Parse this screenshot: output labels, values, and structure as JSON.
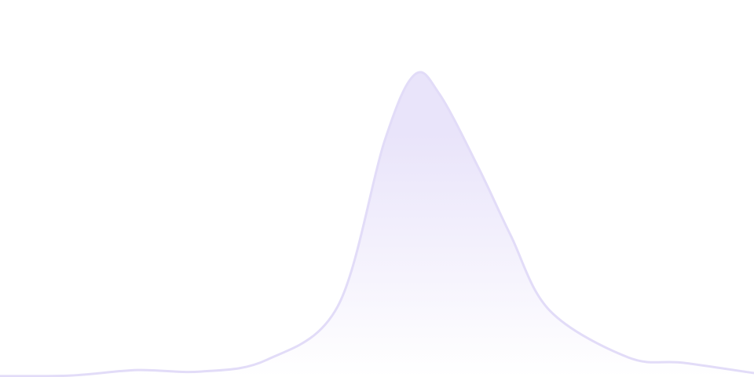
{
  "chart_data": {
    "type": "area",
    "title": "",
    "xlabel": "",
    "ylabel": "",
    "grid": false,
    "axes_visible": false,
    "legend": "none",
    "smooth": true,
    "xlim": [
      0,
      100
    ],
    "ylim": [
      0,
      100
    ],
    "colors": {
      "stroke": "#e2dcf8",
      "fill_top": "#e9e4fa",
      "fill_bottom": "#ffffff"
    },
    "series": [
      {
        "x": [
          0,
          9.4,
          18.2,
          26.6,
          35.4,
          44.8,
          51,
          55,
          58.3,
          63.5,
          67.7,
          72.9,
          83.3,
          90.6,
          100
        ],
        "values": [
          0.3,
          0.5,
          2.3,
          1.8,
          5.7,
          23.4,
          78,
          100,
          93.5,
          69,
          47,
          22,
          6.5,
          4.7,
          1.3
        ]
      }
    ]
  }
}
